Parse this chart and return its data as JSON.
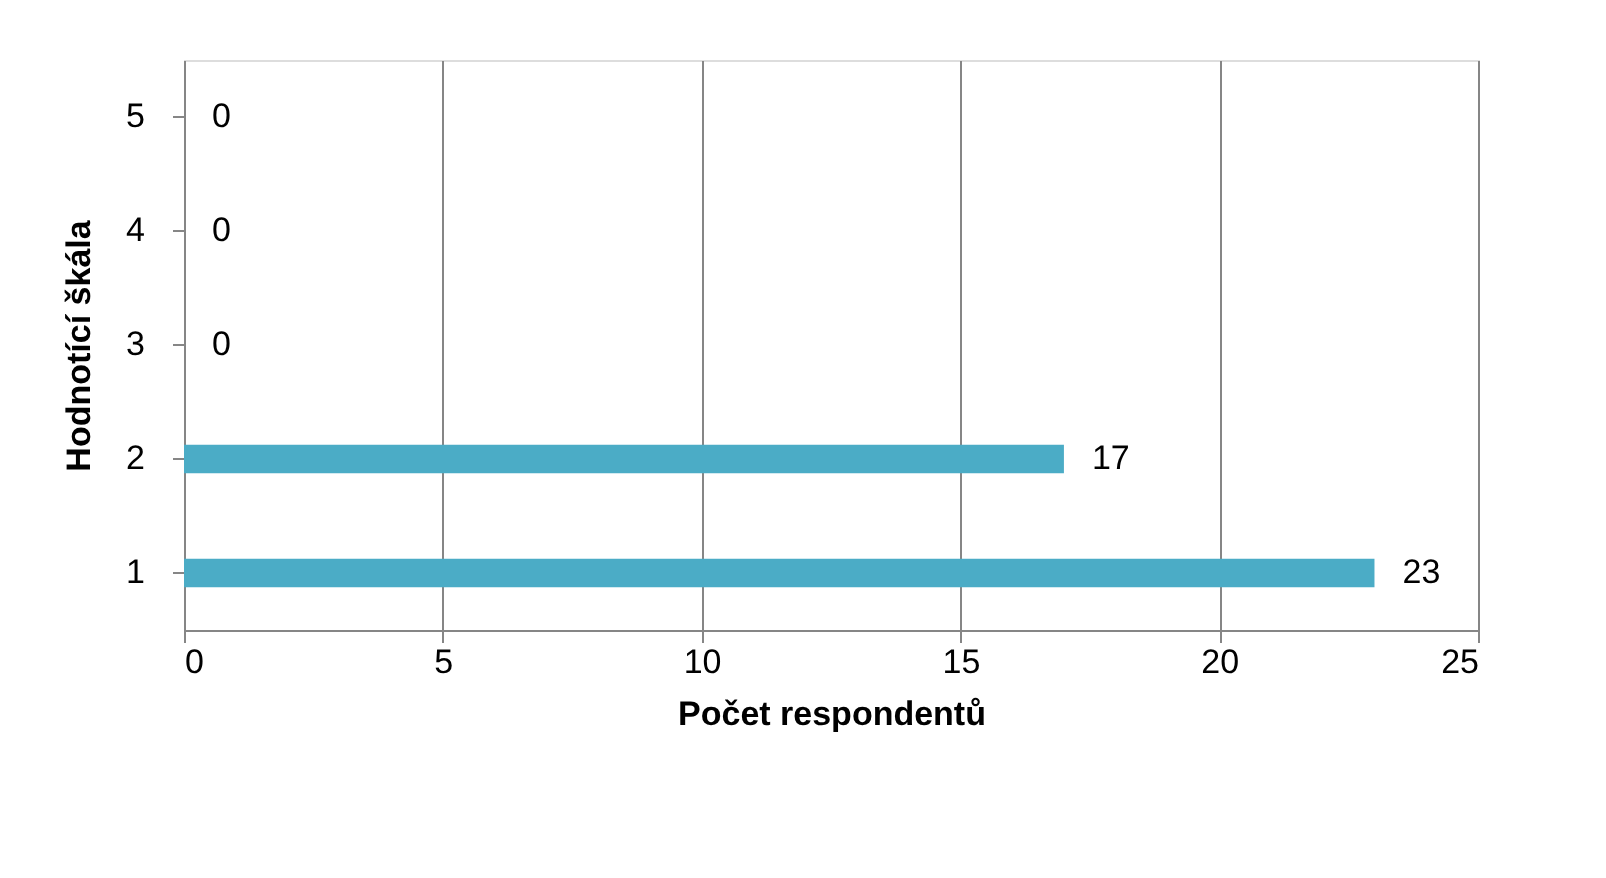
{
  "chart_data": {
    "type": "bar",
    "orientation": "horizontal",
    "xlabel": "Počet respondentů",
    "ylabel": "Hodnotící škála",
    "categories": [
      "5",
      "4",
      "3",
      "2",
      "1"
    ],
    "values": [
      0,
      0,
      0,
      17,
      23
    ],
    "color": "#4bacc6",
    "xlim": [
      0,
      25
    ],
    "xticks": [
      0,
      5,
      10,
      15,
      20,
      25
    ],
    "grid": "x",
    "data_labels": true
  }
}
